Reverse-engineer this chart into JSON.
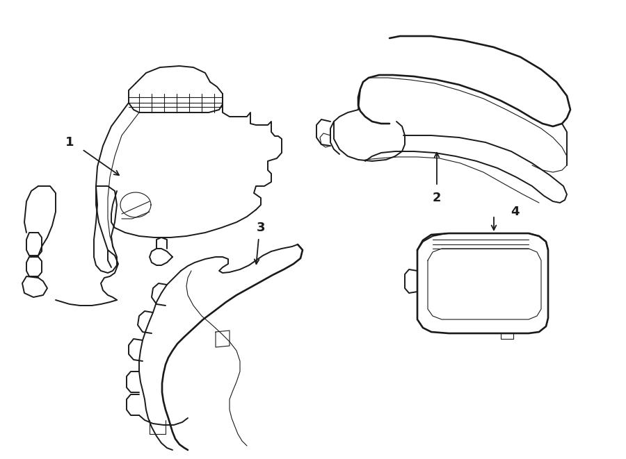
{
  "background_color": "#ffffff",
  "line_color": "#1a1a1a",
  "line_width": 1.4,
  "thin_lw": 0.8,
  "label_fontsize": 12,
  "figsize": [
    9.0,
    6.61
  ],
  "dpi": 100
}
